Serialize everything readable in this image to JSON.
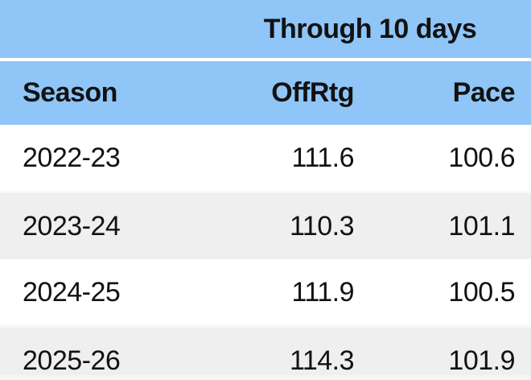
{
  "chart_data": {
    "type": "table",
    "title": "Through 10 days",
    "columns": [
      "Season",
      "OffRtg",
      "Pace"
    ],
    "rows": [
      [
        "2022-23",
        "111.6",
        "100.6"
      ],
      [
        "2023-24",
        "110.3",
        "101.1"
      ],
      [
        "2024-25",
        "111.9",
        "100.5"
      ],
      [
        "2025-26",
        "114.3",
        "101.9"
      ]
    ],
    "layout_hints": {
      "merged_title_spans": [
        "OffRtg",
        "Pace"
      ],
      "season_alignment": "left",
      "numeric_alignment": "right",
      "row_striping": "white / light-gray alternating",
      "last_row_clipped": true
    }
  },
  "colors": {
    "header_bg": "#8FC5F7",
    "row_bg": "#FFFFFF",
    "row_alt_bg": "#EFEFEF",
    "text": "#121212",
    "separator": "#FFFFFF"
  }
}
